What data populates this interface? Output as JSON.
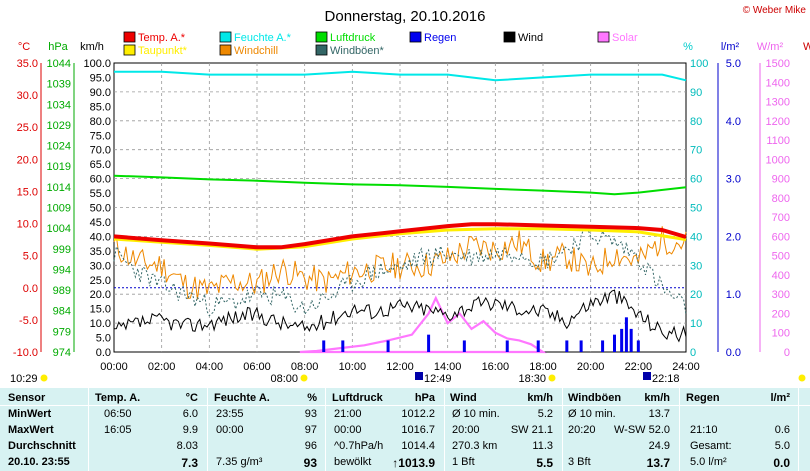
{
  "title": "Donnerstag, 20.10.2016",
  "copyright": "© Weber Mike",
  "axis_units": {
    "temp": "°C",
    "press": "hPa",
    "speed": "km/h",
    "pct": "%",
    "rain": "l/m²",
    "solar": "W/m²",
    "extra": "W"
  },
  "legend": [
    {
      "label": "Temp. A.*",
      "color": "#ee0000"
    },
    {
      "label": "Feuchte A.*",
      "color": "#00e8e8"
    },
    {
      "label": "Luftdruck",
      "color": "#00dd00"
    },
    {
      "label": "Regen",
      "color": "#0000ee"
    },
    {
      "label": "Wind",
      "color": "#000000"
    },
    {
      "label": "Solar",
      "color": "#ff77ff"
    },
    {
      "label": "Taupunkt*",
      "color": "#ffee00"
    },
    {
      "label": "Windchill",
      "color": "#ee8800"
    },
    {
      "label": "Windböen*",
      "color": "#336666"
    }
  ],
  "chart_data": {
    "type": "line",
    "x_ticks": [
      "00:00",
      "02:00",
      "04:00",
      "06:00",
      "08:00",
      "10:00",
      "12:00",
      "14:00",
      "16:00",
      "18:00",
      "20:00",
      "22:00",
      "24:00"
    ],
    "axes": {
      "temp": {
        "min": -10,
        "max": 35,
        "ticks": [
          "35.0",
          "30.0",
          "25.0",
          "20.0",
          "15.0",
          "10.0",
          "5.0",
          "0.0",
          "-5.0",
          "-10.0"
        ]
      },
      "press": {
        "min": 974,
        "max": 1044,
        "ticks": [
          "1044",
          "1039",
          "1034",
          "1029",
          "1024",
          "1019",
          "1014",
          "1009",
          "1004",
          "999",
          "994",
          "989",
          "984",
          "979",
          "974"
        ]
      },
      "speed": {
        "min": 0,
        "max": 100,
        "ticks": [
          "100.0",
          "95.0",
          "90.0",
          "85.0",
          "80.0",
          "75.0",
          "70.0",
          "65.0",
          "60.0",
          "55.0",
          "50.0",
          "45.0",
          "40.0",
          "35.0",
          "30.0",
          "25.0",
          "20.0",
          "15.0",
          "10.0",
          "5.0",
          "0.0"
        ]
      },
      "pct": {
        "min": 0,
        "max": 100,
        "ticks": [
          "100",
          "90",
          "80",
          "70",
          "60",
          "50",
          "40",
          "30",
          "20",
          "10",
          "0"
        ]
      },
      "rain": {
        "min": 0,
        "max": 5,
        "ticks": [
          "5.0",
          "4.0",
          "3.0",
          "2.0",
          "1.0",
          "0.0"
        ]
      },
      "solar": {
        "min": 0,
        "max": 1500,
        "ticks": [
          "1500",
          "1400",
          "1300",
          "1200",
          "1100",
          "1000",
          "900",
          "800",
          "700",
          "600",
          "500",
          "400",
          "300",
          "200",
          "100",
          "0"
        ]
      }
    },
    "series": [
      {
        "name": "Temp. A.*",
        "axis": "temp",
        "x": [
          0,
          2,
          4,
          6,
          7,
          8,
          10,
          12,
          14,
          15,
          16,
          18,
          20,
          22,
          23,
          24
        ],
        "y": [
          8.0,
          7.4,
          6.9,
          6.3,
          6.3,
          6.8,
          8.0,
          8.8,
          9.6,
          9.9,
          9.9,
          9.7,
          9.5,
          9.3,
          9.0,
          7.9
        ]
      },
      {
        "name": "Taupunkt*",
        "axis": "temp",
        "x": [
          0,
          2,
          4,
          6,
          8,
          10,
          12,
          14,
          16,
          18,
          20,
          22,
          24
        ],
        "y": [
          7.6,
          7.1,
          6.6,
          6.0,
          6.4,
          7.6,
          8.4,
          9.0,
          9.2,
          9.2,
          9.0,
          8.7,
          7.5
        ]
      },
      {
        "name": "Feuchte A.*",
        "axis": "pct",
        "x": [
          0,
          2,
          4,
          6,
          8,
          10,
          12,
          14,
          16,
          18,
          20,
          22,
          23,
          24
        ],
        "y": [
          97,
          97,
          96,
          96,
          96,
          97,
          96,
          96,
          94,
          95,
          96,
          96,
          96,
          94
        ]
      },
      {
        "name": "Luftdruck",
        "axis": "press",
        "x": [
          0,
          2,
          4,
          6,
          8,
          10,
          12,
          14,
          16,
          18,
          20,
          21,
          22,
          24
        ],
        "y": [
          1016.7,
          1016.3,
          1015.8,
          1015.5,
          1015.0,
          1014.6,
          1014.4,
          1014.0,
          1013.5,
          1013.1,
          1012.6,
          1012.2,
          1012.6,
          1013.9
        ]
      }
    ],
    "noisy_series": [
      {
        "name": "Windchill",
        "axis": "temp",
        "x": [
          0,
          1,
          2,
          3,
          4,
          5,
          6,
          7,
          8,
          9,
          10,
          11,
          12,
          13,
          14,
          15,
          16,
          17,
          18,
          19,
          20,
          21,
          22,
          23,
          24
        ],
        "y": [
          6.5,
          4.0,
          3.5,
          0.5,
          -0.5,
          1.0,
          0.5,
          3.0,
          1.5,
          1.0,
          2.5,
          3.0,
          3.5,
          3.5,
          4.5,
          6.5,
          6.0,
          7.0,
          4.0,
          5.0,
          2.5,
          5.5,
          4.0,
          7.5,
          7.0
        ],
        "noise": 2.2,
        "seed": 11
      },
      {
        "name": "Windböen*",
        "axis": "speed",
        "x": [
          0,
          1,
          2,
          3,
          4,
          5,
          6,
          7,
          8,
          9,
          10,
          11,
          12,
          13,
          14,
          15,
          16,
          17,
          18,
          19,
          20,
          21,
          22,
          23,
          24
        ],
        "y": [
          34,
          28,
          23,
          20,
          16,
          17,
          20,
          19,
          15,
          19,
          24,
          28,
          29,
          33,
          34,
          33,
          34,
          35,
          31,
          36,
          41,
          38,
          33,
          22,
          15
        ],
        "noise": 3.5,
        "seed": 23
      },
      {
        "name": "Wind",
        "axis": "speed",
        "x": [
          0,
          1,
          2,
          3,
          4,
          5,
          6,
          7,
          8,
          9,
          10,
          11,
          12,
          13,
          14,
          15,
          16,
          17,
          18,
          19,
          20,
          21,
          22,
          23,
          24
        ],
        "y": [
          7,
          10,
          11,
          9,
          10,
          12,
          13,
          10,
          8,
          11,
          15,
          14,
          16,
          15,
          13,
          16,
          17,
          15,
          14,
          11,
          17,
          20,
          13,
          7,
          6
        ],
        "noise": 2.8,
        "seed": 37
      }
    ],
    "solar": {
      "name": "Solar",
      "axis": "solar",
      "x": [
        7.8,
        8.5,
        9.5,
        10.5,
        11.5,
        12.5,
        13.2,
        13.5,
        14.0,
        14.5,
        15.0,
        15.5,
        16.0,
        16.5,
        17.0,
        17.5,
        18.0
      ],
      "y": [
        0,
        5,
        20,
        35,
        60,
        90,
        200,
        280,
        150,
        200,
        120,
        160,
        100,
        70,
        60,
        40,
        0
      ]
    },
    "rain_bars": {
      "name": "Regen",
      "axis": "rain",
      "x": [
        8.8,
        9.6,
        11.5,
        13.2,
        14.7,
        16.5,
        17.8,
        19.0,
        19.6,
        20.5,
        21.0,
        21.3,
        21.5,
        21.7,
        22.0
      ],
      "y": [
        0.2,
        0.2,
        0.2,
        0.3,
        0.2,
        0.2,
        0.2,
        0.2,
        0.2,
        0.2,
        0.3,
        0.4,
        0.6,
        0.4,
        0.2
      ]
    }
  },
  "chart_data_wind": [],
  "time_labels": {
    "left": "10:29",
    "sunrise": "08:00",
    "moonset": "12:49",
    "sunset": "18:30",
    "moonrise": "22:18"
  },
  "table": {
    "headers": [
      "Sensor",
      "Temp. A.",
      "°C",
      "Feuchte A.",
      "%",
      "Luftdruck",
      "hPa",
      "Wind",
      "km/h",
      "Windböen",
      "km/h",
      "Regen",
      "l/m²"
    ],
    "rows": [
      {
        "label": "MinWert",
        "temp_time": "06:50",
        "temp": "6.0",
        "hum_time": "23:55",
        "hum": "93",
        "press_time": "21:00",
        "press": "1012.2",
        "wind_label": "Ø 10 min.",
        "wind": "5.2",
        "gust_label": "Ø 10 min.",
        "gust": "13.7",
        "rain_label": "",
        "rain": ""
      },
      {
        "label": "MaxWert",
        "temp_time": "16:05",
        "temp": "9.9",
        "hum_time": "00:00",
        "hum": "97",
        "press_time": "00:00",
        "press": "1016.7",
        "wind_label": "20:00",
        "wind": "SW 21.1",
        "gust_label": "20:20",
        "gust": "W-SW 52.0",
        "rain_label": "21:10",
        "rain": "0.6"
      },
      {
        "label": "Durchschnitt",
        "temp_time": "",
        "temp": "8.03",
        "hum_time": "",
        "hum": "96",
        "press_time": "^0.7hPa/h",
        "press": "1014.4",
        "wind_label": "270.3 km",
        "wind": "11.3",
        "gust_label": "",
        "gust": "24.9",
        "rain_label": "Gesamt:",
        "rain": "5.0"
      },
      {
        "label": "20.10. 23:55",
        "temp_time": "",
        "temp": "7.3",
        "hum_time": "7.35 g/m³",
        "hum": "93",
        "press_time": "bewölkt",
        "press": "↑1013.9",
        "wind_label": "1 Bft",
        "wind": "5.5",
        "gust_label": "3 Bft",
        "gust": "13.7",
        "rain_label": "5.0 l/m²",
        "rain": "0.0"
      }
    ]
  }
}
